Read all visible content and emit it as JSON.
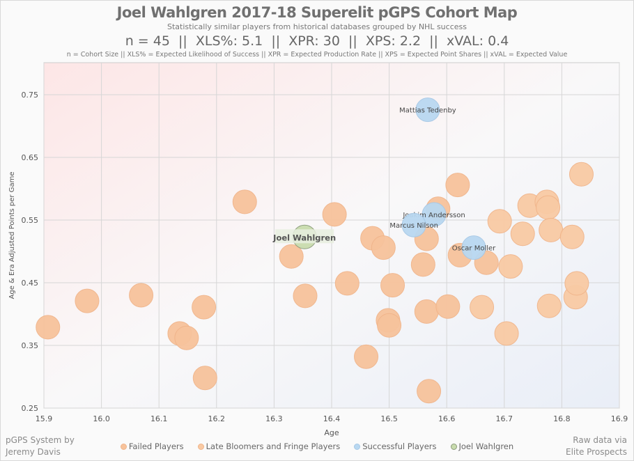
{
  "header": {
    "title": "Joel Wahlgren 2017-18 Superelit pGPS Cohort Map",
    "subtitle": "Statistically similar players from historical databases grouped by NHL success",
    "stats": "n = 45  ||  XLS%: 5.1  ||  XPR: 30  ||  XPS: 2.2  ||  xVAL: 0.4",
    "definitions": "n = Cohort Size || XLS% = Expected Likelihood of Success || XPR = Expected Production Rate || XPS = Expected Point Shares || xVAL = Expected Value"
  },
  "credits": {
    "left_line1": "pGPS System by",
    "left_line2": "Jeremy Davis",
    "right_line1": "Raw data via",
    "right_line2": "Elite Prospects"
  },
  "chart_data": {
    "type": "scatter",
    "title": "Joel Wahlgren 2017-18 Superelit pGPS Cohort Map",
    "xlabel": "Age",
    "ylabel": "Age & Era Adjusted Points per Game",
    "xlim": [
      15.9,
      16.9
    ],
    "ylim": [
      0.25,
      0.79
    ],
    "xticks": [
      "15.9",
      "16.0",
      "16.1",
      "16.2",
      "16.3",
      "16.4",
      "16.5",
      "16.6",
      "16.7",
      "16.8",
      "16.9"
    ],
    "yticks": [
      "0.25",
      "0.35",
      "0.45",
      "0.55",
      "0.65",
      "0.75"
    ],
    "grid": true,
    "legend_placement": "bottom",
    "series": [
      {
        "name": "Failed Players",
        "color": "#f7c39c",
        "points": [
          [
            15.907,
            0.379
          ],
          [
            15.975,
            0.421
          ],
          [
            16.069,
            0.43
          ],
          [
            16.136,
            0.369
          ],
          [
            16.148,
            0.362
          ],
          [
            16.178,
            0.411
          ],
          [
            16.18,
            0.298
          ],
          [
            16.249,
            0.579
          ],
          [
            16.33,
            0.492
          ],
          [
            16.354,
            0.429
          ],
          [
            16.405,
            0.559
          ],
          [
            16.427,
            0.449
          ],
          [
            16.471,
            0.521
          ],
          [
            16.49,
            0.506
          ],
          [
            16.46,
            0.332
          ],
          [
            16.498,
            0.39
          ],
          [
            16.5,
            0.382
          ],
          [
            16.506,
            0.446
          ],
          [
            16.565,
            0.404
          ],
          [
            16.569,
            0.277
          ],
          [
            16.602,
            0.412
          ],
          [
            16.559,
            0.479
          ],
          [
            16.565,
            0.52
          ],
          [
            16.585,
            0.568
          ],
          [
            16.619,
            0.606
          ],
          [
            16.623,
            0.494
          ],
          [
            16.669,
            0.482
          ]
        ]
      },
      {
        "name": "Late Bloomers and Fringe Players",
        "color": "#f9caa4",
        "points": [
          [
            16.692,
            0.548
          ],
          [
            16.661,
            0.411
          ],
          [
            16.711,
            0.476
          ],
          [
            16.704,
            0.369
          ],
          [
            16.744,
            0.573
          ],
          [
            16.732,
            0.528
          ],
          [
            16.774,
            0.579
          ],
          [
            16.776,
            0.57
          ],
          [
            16.781,
            0.534
          ],
          [
            16.778,
            0.413
          ],
          [
            16.818,
            0.523
          ],
          [
            16.824,
            0.427
          ],
          [
            16.826,
            0.449
          ],
          [
            16.834,
            0.623
          ]
        ]
      },
      {
        "name": "Successful Players",
        "color": "#b9d8f1",
        "points": [
          [
            16.567,
            0.726,
            "Mattias Tedenby"
          ],
          [
            16.578,
            0.559,
            "Joakim Andersson"
          ],
          [
            16.543,
            0.542,
            "Marcus Nilson"
          ],
          [
            16.647,
            0.506,
            "Oscar Moller"
          ]
        ]
      },
      {
        "name": "Joel Wahlgren",
        "color": "#c9dcae",
        "points": [
          [
            16.353,
            0.523,
            "Joel Wahlgren"
          ]
        ]
      }
    ]
  }
}
